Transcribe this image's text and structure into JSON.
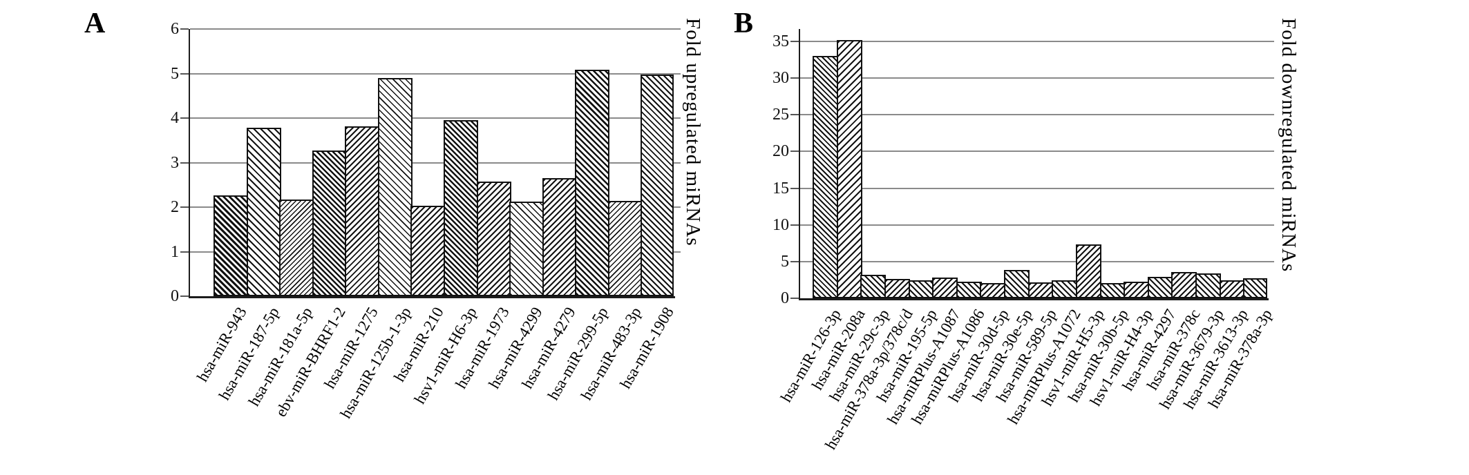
{
  "figure_title": "",
  "colors": {
    "background": "#ffffff",
    "hatch_line": "#111111",
    "gridline": "#8a8a8a",
    "axis": "#1c1c1c",
    "text": "#000000"
  },
  "chart_data": [
    {
      "type": "bar",
      "panel_label": "A",
      "title": "",
      "xlabel": "",
      "ylabel": "Fold upregulated miRNAs",
      "ylim": [
        0,
        6
      ],
      "yticks": [
        0,
        1,
        2,
        3,
        4,
        5,
        6
      ],
      "grid": "horizontal",
      "legend": "none",
      "categories": [
        "hsa-miR-943",
        "hsa-miR-187-5p",
        "hsa-miR-181a-5p",
        "ebv-miR-BHRF1-2",
        "hsa-miR-1275",
        "hsa-miR-125b-1-3p",
        "hsa-miR-210",
        "hsv1-miR-H6-3p",
        "hsa-miR-1973",
        "hsa-miR-4299",
        "hsa-miR-4279",
        "hsa-miR-299-5p",
        "hsa-miR-483-3p",
        "hsa-miR-1908"
      ],
      "values": [
        2.27,
        3.78,
        2.17,
        3.27,
        3.82,
        4.9,
        2.03,
        3.95,
        2.57,
        2.12,
        2.65,
        5.08,
        2.14,
        4.97
      ],
      "hatches": [
        {
          "dir": "backslash",
          "line": 3,
          "gap": 3
        },
        {
          "dir": "backslash",
          "line": 2,
          "gap": 5
        },
        {
          "dir": "slash",
          "line": 1.5,
          "gap": 3.5
        },
        {
          "dir": "backslash",
          "line": 2.5,
          "gap": 3
        },
        {
          "dir": "slash",
          "line": 2,
          "gap": 4
        },
        {
          "dir": "backslash",
          "line": 1.5,
          "gap": 5
        },
        {
          "dir": "slash",
          "line": 2,
          "gap": 4
        },
        {
          "dir": "backslash",
          "line": 2.5,
          "gap": 3
        },
        {
          "dir": "slash",
          "line": 2,
          "gap": 4
        },
        {
          "dir": "backslash",
          "line": 1.5,
          "gap": 5
        },
        {
          "dir": "slash",
          "line": 2,
          "gap": 4
        },
        {
          "dir": "backslash",
          "line": 2.5,
          "gap": 3.5
        },
        {
          "dir": "slash",
          "line": 1.5,
          "gap": 4
        },
        {
          "dir": "backslash",
          "line": 2,
          "gap": 4
        }
      ]
    },
    {
      "type": "bar",
      "panel_label": "B",
      "title": "",
      "xlabel": "",
      "ylabel": "Fold downregulated miRNAs",
      "ylim": [
        0,
        35
      ],
      "yticks": [
        0,
        5,
        10,
        15,
        20,
        25,
        30,
        35
      ],
      "grid": "horizontal",
      "legend": "none",
      "categories": [
        "hsa-miR-126-3p",
        "hsa-miR-208a",
        "hsa-miR-29c-3p",
        "hsa-miR-378a-3p/378c/d",
        "hsa-miR-195-5p",
        "hsa-miRPlus-A1087",
        "hsa-miRPlus-A1086",
        "hsa-miR-30d-5p",
        "hsa-miR-30e-5p",
        "hsa-miR-589-5p",
        "hsa-miRPlus-A1072",
        "hsv1-miR-H5-3p",
        "hsa-miR-30b-5p",
        "hsv1-miR-H4-3p",
        "hsa-miR-4297",
        "hsa-miR-378c",
        "hsa-miR-3679-3p",
        "hsa-miR-3613-3p",
        "hsa-miR-378a-3p"
      ],
      "values": [
        33.0,
        35.2,
        3.2,
        2.6,
        2.4,
        2.8,
        2.3,
        2.1,
        3.9,
        2.2,
        2.4,
        7.35,
        2.1,
        2.3,
        2.9,
        3.6,
        3.4,
        2.4,
        2.7
      ],
      "hatches": [
        {
          "dir": "backslash",
          "line": 2,
          "gap": 3.5
        },
        {
          "dir": "slash",
          "line": 2,
          "gap": 5
        },
        {
          "dir": "backslash",
          "line": 2,
          "gap": 4
        },
        {
          "dir": "slash",
          "line": 2,
          "gap": 4
        },
        {
          "dir": "backslash",
          "line": 2,
          "gap": 4
        },
        {
          "dir": "slash",
          "line": 2,
          "gap": 4
        },
        {
          "dir": "backslash",
          "line": 2,
          "gap": 4
        },
        {
          "dir": "slash",
          "line": 2,
          "gap": 4
        },
        {
          "dir": "backslash",
          "line": 2,
          "gap": 4
        },
        {
          "dir": "slash",
          "line": 2,
          "gap": 4
        },
        {
          "dir": "backslash",
          "line": 2,
          "gap": 4
        },
        {
          "dir": "slash",
          "line": 2,
          "gap": 4
        },
        {
          "dir": "backslash",
          "line": 2,
          "gap": 4
        },
        {
          "dir": "slash",
          "line": 2,
          "gap": 4
        },
        {
          "dir": "backslash",
          "line": 2,
          "gap": 4
        },
        {
          "dir": "slash",
          "line": 2,
          "gap": 4
        },
        {
          "dir": "backslash",
          "line": 2,
          "gap": 4
        },
        {
          "dir": "slash",
          "line": 2,
          "gap": 4
        },
        {
          "dir": "backslash",
          "line": 2,
          "gap": 4
        }
      ]
    }
  ]
}
